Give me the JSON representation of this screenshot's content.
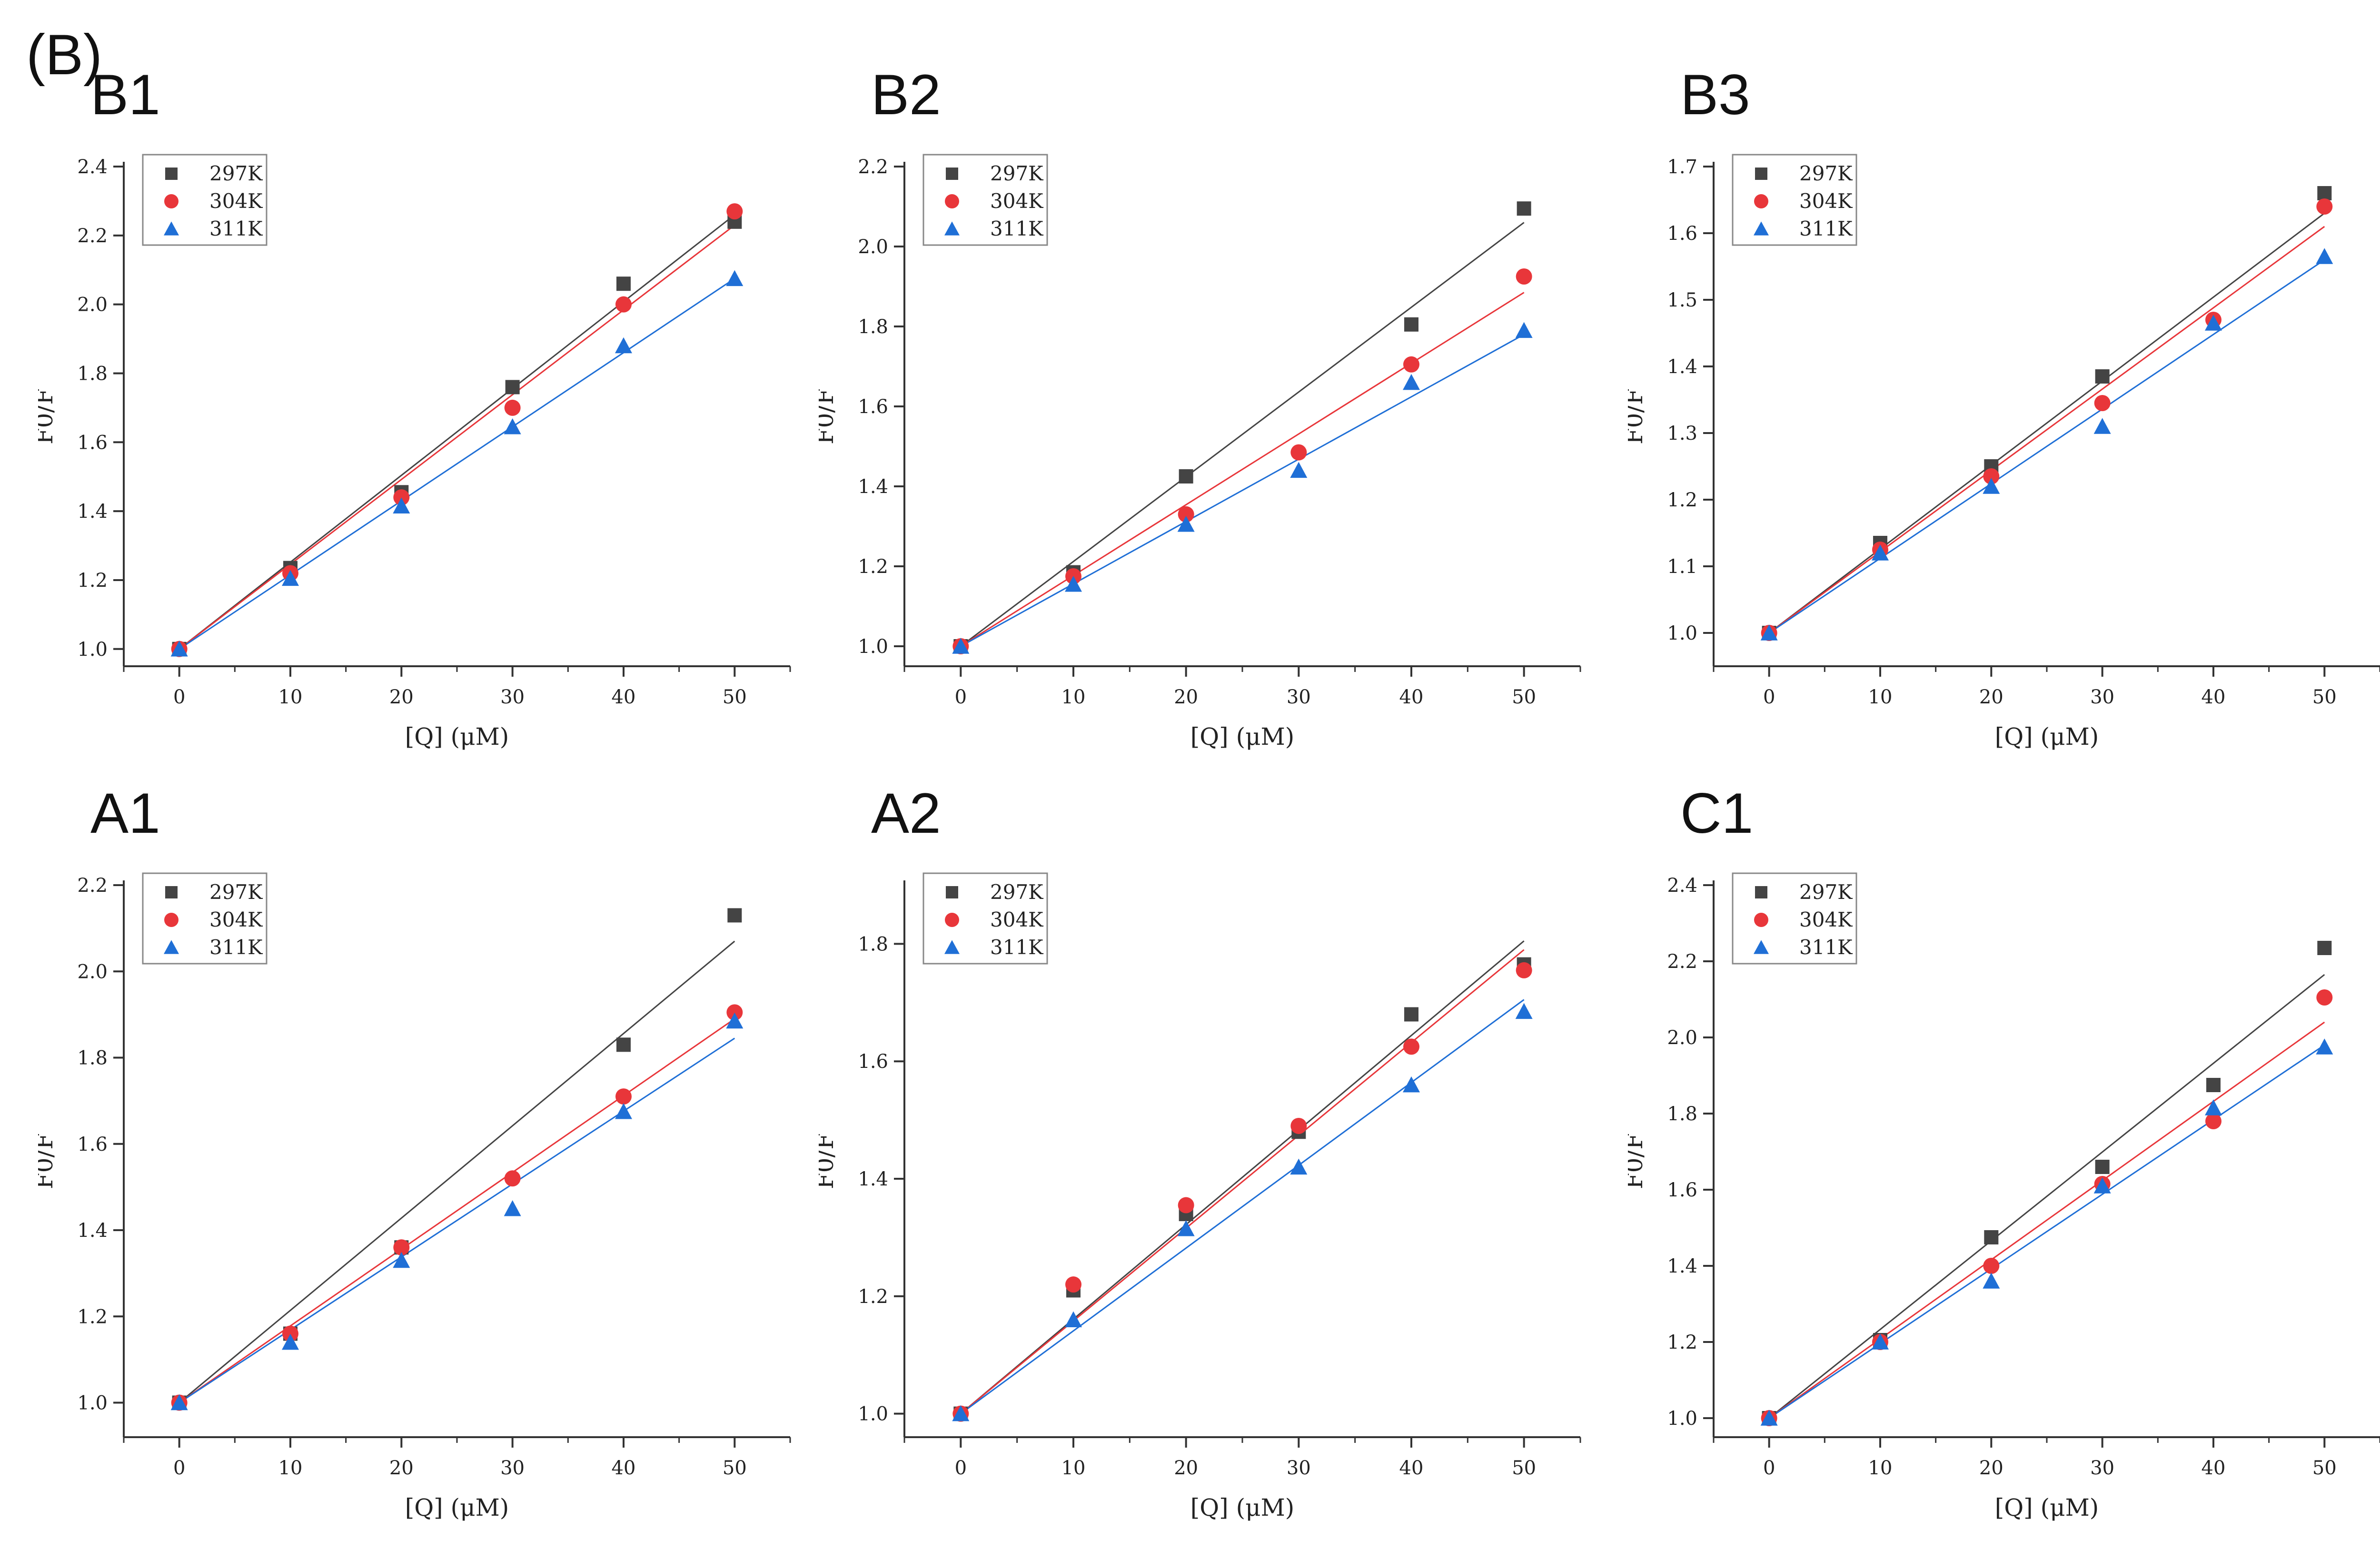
{
  "figure_label": "(B)",
  "colors": {
    "297K": "#444444",
    "304K": "#e8363a",
    "311K": "#1f6fd6",
    "axis": "#333333"
  },
  "chart_data": [
    {
      "type": "scatter",
      "title": "B1",
      "xlabel": "[Q]  (μM)",
      "ylabel": "F0/F",
      "xlim": [
        -5,
        55
      ],
      "ylim": [
        0.95,
        2.4
      ],
      "xticks": [
        0,
        10,
        20,
        30,
        40,
        50
      ],
      "yticks": [
        1.0,
        1.2,
        1.4,
        1.6,
        1.8,
        2.0,
        2.2,
        2.4
      ],
      "legend": "top-left",
      "x": [
        0,
        10,
        20,
        30,
        40,
        50
      ],
      "series": [
        {
          "name": "297K",
          "marker": "square",
          "values": [
            1.0,
            1.235,
            1.455,
            1.76,
            2.06,
            2.24
          ],
          "fit": [
            1.0,
            2.26
          ]
        },
        {
          "name": "304K",
          "marker": "circle",
          "values": [
            1.0,
            1.22,
            1.44,
            1.7,
            2.0,
            2.27
          ],
          "fit": [
            1.0,
            2.23
          ]
        },
        {
          "name": "311K",
          "marker": "triangle",
          "values": [
            1.0,
            1.205,
            1.415,
            1.645,
            1.88,
            2.075
          ],
          "fit": [
            1.0,
            2.075
          ]
        }
      ]
    },
    {
      "type": "scatter",
      "title": "B2",
      "xlabel": "[Q]  (μM)",
      "ylabel": "F0/F",
      "xlim": [
        -5,
        55
      ],
      "ylim": [
        0.95,
        2.2
      ],
      "xticks": [
        0,
        10,
        20,
        30,
        40,
        50
      ],
      "yticks": [
        1.0,
        1.2,
        1.4,
        1.6,
        1.8,
        2.0,
        2.2
      ],
      "legend": "top-left",
      "x": [
        0,
        10,
        20,
        30,
        40,
        50
      ],
      "series": [
        {
          "name": "297K",
          "marker": "square",
          "values": [
            1.0,
            1.185,
            1.425,
            null,
            1.805,
            2.095
          ],
          "fit": [
            1.0,
            2.06
          ]
        },
        {
          "name": "304K",
          "marker": "circle",
          "values": [
            1.0,
            1.175,
            1.33,
            1.485,
            1.705,
            1.925
          ],
          "fit": [
            1.0,
            1.885
          ]
        },
        {
          "name": "311K",
          "marker": "triangle",
          "values": [
            1.0,
            1.155,
            1.305,
            1.44,
            1.66,
            1.79
          ],
          "fit": [
            1.0,
            1.78
          ]
        }
      ]
    },
    {
      "type": "scatter",
      "title": "B3",
      "xlabel": "[Q]  (μM)",
      "ylabel": "F0/F",
      "xlim": [
        -5,
        55
      ],
      "ylim": [
        0.95,
        1.7
      ],
      "xticks": [
        0,
        10,
        20,
        30,
        40,
        50
      ],
      "yticks": [
        1.0,
        1.1,
        1.2,
        1.3,
        1.4,
        1.5,
        1.6,
        1.7
      ],
      "legend": "top-left",
      "x": [
        0,
        10,
        20,
        30,
        40,
        50
      ],
      "series": [
        {
          "name": "297K",
          "marker": "square",
          "values": [
            1.0,
            1.135,
            1.25,
            1.385,
            null,
            1.66
          ],
          "fit": [
            1.0,
            1.63
          ]
        },
        {
          "name": "304K",
          "marker": "circle",
          "values": [
            1.0,
            1.125,
            1.235,
            1.345,
            1.47,
            1.64
          ],
          "fit": [
            1.0,
            1.61
          ]
        },
        {
          "name": "311K",
          "marker": "triangle",
          "values": [
            1.0,
            1.12,
            1.22,
            1.31,
            1.465,
            1.565
          ],
          "fit": [
            1.0,
            1.56
          ]
        }
      ]
    },
    {
      "type": "scatter",
      "title": "A1",
      "xlabel": "[Q]  (μM)",
      "ylabel": "F0/F",
      "xlim": [
        -5,
        55
      ],
      "ylim": [
        0.92,
        2.2
      ],
      "xticks": [
        0,
        10,
        20,
        30,
        40,
        50
      ],
      "yticks": [
        1.0,
        1.2,
        1.4,
        1.6,
        1.8,
        2.0,
        2.2
      ],
      "legend": "top-left",
      "x": [
        0,
        10,
        20,
        30,
        40,
        50
      ],
      "series": [
        {
          "name": "297K",
          "marker": "square",
          "values": [
            1.0,
            1.16,
            1.36,
            null,
            1.83,
            2.13
          ],
          "fit": [
            1.0,
            2.07
          ]
        },
        {
          "name": "304K",
          "marker": "circle",
          "values": [
            1.0,
            1.16,
            1.36,
            1.52,
            1.71,
            1.905
          ],
          "fit": [
            1.0,
            1.89
          ]
        },
        {
          "name": "311K",
          "marker": "triangle",
          "values": [
            1.0,
            1.14,
            1.33,
            1.45,
            1.675,
            1.885
          ],
          "fit": [
            1.0,
            1.845
          ]
        }
      ]
    },
    {
      "type": "scatter",
      "title": "A2",
      "xlabel": "[Q]  (μM)",
      "ylabel": "F0/F",
      "xlim": [
        -5,
        55
      ],
      "ylim": [
        0.96,
        1.9
      ],
      "xticks": [
        0,
        10,
        20,
        30,
        40,
        50
      ],
      "yticks": [
        1.0,
        1.2,
        1.4,
        1.6,
        1.8
      ],
      "legend": "top-left",
      "x": [
        0,
        10,
        20,
        30,
        40,
        50
      ],
      "series": [
        {
          "name": "297K",
          "marker": "square",
          "values": [
            1.0,
            1.21,
            1.34,
            1.48,
            1.68,
            1.765
          ],
          "fit": [
            1.0,
            1.805
          ]
        },
        {
          "name": "304K",
          "marker": "circle",
          "values": [
            1.0,
            1.22,
            1.355,
            1.49,
            1.625,
            1.755
          ],
          "fit": [
            1.0,
            1.79
          ]
        },
        {
          "name": "311K",
          "marker": "triangle",
          "values": [
            1.0,
            1.16,
            1.315,
            1.42,
            1.56,
            1.685
          ],
          "fit": [
            1.0,
            1.705
          ]
        }
      ]
    },
    {
      "type": "scatter",
      "title": "C1",
      "xlabel": "[Q]  (μM)",
      "ylabel": "F0/F",
      "xlim": [
        -5,
        55
      ],
      "ylim": [
        0.95,
        2.4
      ],
      "xticks": [
        0,
        10,
        20,
        30,
        40,
        50
      ],
      "yticks": [
        1.0,
        1.2,
        1.4,
        1.6,
        1.8,
        2.0,
        2.2,
        2.4
      ],
      "legend": "top-left",
      "x": [
        0,
        10,
        20,
        30,
        40,
        50
      ],
      "series": [
        {
          "name": "297K",
          "marker": "square",
          "values": [
            1.0,
            1.205,
            1.475,
            1.66,
            1.875,
            2.235
          ],
          "fit": [
            1.0,
            2.165
          ]
        },
        {
          "name": "304K",
          "marker": "circle",
          "values": [
            1.0,
            1.2,
            1.4,
            1.615,
            1.78,
            2.105
          ],
          "fit": [
            1.0,
            2.04
          ]
        },
        {
          "name": "311K",
          "marker": "triangle",
          "values": [
            1.0,
            1.2,
            1.36,
            1.61,
            1.815,
            1.975
          ],
          "fit": [
            1.0,
            1.98
          ]
        }
      ]
    }
  ]
}
